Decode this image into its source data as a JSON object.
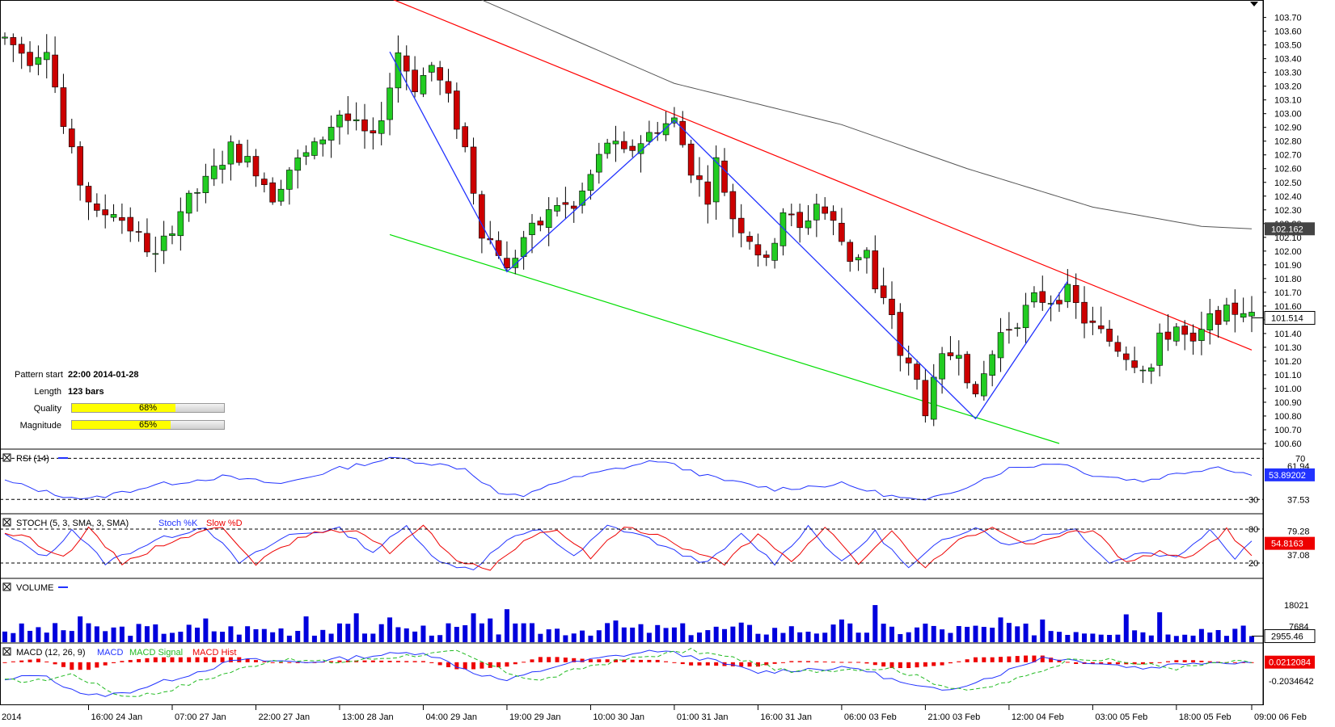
{
  "chart_data": {
    "type": "candlestick",
    "symbol": "USD/JPY",
    "timeframe": "1H",
    "price_axis": {
      "min": 100.6,
      "max": 103.78,
      "ticks": [
        "103.70",
        "103.60",
        "103.50",
        "103.40",
        "103.30",
        "103.20",
        "103.10",
        "103.00",
        "102.90",
        "102.80",
        "102.70",
        "102.60",
        "102.50",
        "102.40",
        "102.30",
        "102.20",
        "102.10",
        "102.00",
        "101.90",
        "101.80",
        "101.70",
        "101.60",
        "101.50",
        "101.40",
        "101.30",
        "101.20",
        "101.10",
        "101.00",
        "100.90",
        "100.80",
        "100.70",
        "100.60"
      ],
      "ma_label": "102.162",
      "ma_value": 102.162,
      "last_label": "101.514",
      "last_value": 101.514
    },
    "time_axis": [
      "2014",
      "16:00 24 Jan",
      "07:00 27 Jan",
      "22:00 27 Jan",
      "13:00 28 Jan",
      "04:00 29 Jan",
      "19:00 29 Jan",
      "10:00 30 Jan",
      "01:00 31 Jan",
      "16:00 31 Jan",
      "06:00 03 Feb",
      "21:00 03 Feb",
      "12:00 04 Feb",
      "03:00 05 Feb",
      "18:00 05 Feb",
      "09:00 06 Feb"
    ],
    "bars": 150,
    "anchors": [
      [
        0,
        103.55
      ],
      [
        3,
        103.4
      ],
      [
        5,
        103.5
      ],
      [
        7,
        102.9
      ],
      [
        9,
        102.5
      ],
      [
        11,
        102.25
      ],
      [
        13,
        102.3
      ],
      [
        16,
        102.1
      ],
      [
        18,
        101.95
      ],
      [
        21,
        102.3
      ],
      [
        24,
        102.5
      ],
      [
        27,
        102.75
      ],
      [
        30,
        102.6
      ],
      [
        32,
        102.4
      ],
      [
        34,
        102.6
      ],
      [
        37,
        102.75
      ],
      [
        40,
        103.0
      ],
      [
        42,
        102.9
      ],
      [
        44,
        102.8
      ],
      [
        46,
        103.2
      ],
      [
        47,
        103.45
      ],
      [
        49,
        103.2
      ],
      [
        51,
        103.35
      ],
      [
        53,
        103.1
      ],
      [
        55,
        102.75
      ],
      [
        57,
        102.15
      ],
      [
        59,
        102.0
      ],
      [
        60,
        101.85
      ],
      [
        62,
        102.1
      ],
      [
        64,
        102.2
      ],
      [
        66,
        102.35
      ],
      [
        68,
        102.3
      ],
      [
        70,
        102.55
      ],
      [
        72,
        102.8
      ],
      [
        74,
        102.7
      ],
      [
        76,
        102.8
      ],
      [
        78,
        102.9
      ],
      [
        80,
        102.95
      ],
      [
        82,
        102.6
      ],
      [
        84,
        102.4
      ],
      [
        85,
        102.65
      ],
      [
        87,
        102.25
      ],
      [
        89,
        102.1
      ],
      [
        91,
        101.9
      ],
      [
        93,
        102.3
      ],
      [
        95,
        102.15
      ],
      [
        97,
        102.35
      ],
      [
        99,
        102.2
      ],
      [
        101,
        101.95
      ],
      [
        103,
        102.0
      ],
      [
        104,
        101.7
      ],
      [
        106,
        101.55
      ],
      [
        107,
        101.25
      ],
      [
        109,
        101.05
      ],
      [
        110,
        100.85
      ],
      [
        112,
        101.2
      ],
      [
        114,
        101.3
      ],
      [
        116,
        100.9
      ],
      [
        117,
        101.1
      ],
      [
        119,
        101.4
      ],
      [
        121,
        101.5
      ],
      [
        123,
        101.65
      ],
      [
        125,
        101.65
      ],
      [
        127,
        101.7
      ],
      [
        129,
        101.5
      ],
      [
        131,
        101.4
      ],
      [
        133,
        101.3
      ],
      [
        135,
        101.2
      ],
      [
        137,
        101.15
      ],
      [
        138,
        101.35
      ],
      [
        140,
        101.45
      ],
      [
        142,
        101.3
      ],
      [
        144,
        101.5
      ],
      [
        146,
        101.55
      ],
      [
        148,
        101.58
      ],
      [
        149,
        101.514
      ]
    ],
    "ma_curve": [
      [
        0,
        104.4
      ],
      [
        40,
        103.95
      ],
      [
        55,
        103.88
      ],
      [
        80,
        103.22
      ],
      [
        100,
        102.92
      ],
      [
        115,
        102.6
      ],
      [
        130,
        102.32
      ],
      [
        143,
        102.18
      ],
      [
        149,
        102.162
      ]
    ],
    "channel": {
      "upper": [
        [
          46,
          103.84
        ],
        [
          149,
          101.28
        ]
      ],
      "lower": [
        [
          46,
          102.12
        ],
        [
          126,
          100.6
        ]
      ]
    },
    "zigzag": [
      [
        46,
        103.45
      ],
      [
        60,
        101.85
      ],
      [
        80,
        102.95
      ],
      [
        116,
        100.78
      ],
      [
        127,
        101.78
      ]
    ],
    "pattern": {
      "start_label": "Pattern start",
      "start_value": "22:00 2014-01-28",
      "length_label": "Length",
      "length_value": "123 bars",
      "quality_label": "Quality",
      "quality_value": 68,
      "quality_text": "68%",
      "magnitude_label": "Magnitude",
      "magnitude_value": 65,
      "magnitude_text": "65%"
    },
    "rsi": {
      "title": "RSI (14)",
      "levels": [
        "70",
        "30"
      ],
      "tick_labels": [
        "61.94",
        "37.53"
      ],
      "current_label": "53.89202",
      "current": 53.89,
      "anchors": [
        [
          0,
          48
        ],
        [
          6,
          35
        ],
        [
          10,
          30
        ],
        [
          18,
          44
        ],
        [
          26,
          52
        ],
        [
          33,
          45
        ],
        [
          40,
          60
        ],
        [
          45,
          68
        ],
        [
          47,
          70
        ],
        [
          55,
          60
        ],
        [
          59,
          36
        ],
        [
          62,
          32
        ],
        [
          65,
          45
        ],
        [
          72,
          58
        ],
        [
          78,
          68
        ],
        [
          85,
          50
        ],
        [
          92,
          40
        ],
        [
          100,
          45
        ],
        [
          106,
          33
        ],
        [
          110,
          28
        ],
        [
          114,
          40
        ],
        [
          120,
          60
        ],
        [
          126,
          66
        ],
        [
          130,
          54
        ],
        [
          136,
          48
        ],
        [
          140,
          55
        ],
        [
          145,
          62
        ],
        [
          149,
          54
        ]
      ]
    },
    "stoch": {
      "title": "STOCH (5, 3, SMA, 3, SMA)",
      "k_label": "Stoch %K",
      "d_label": "Slow %D",
      "levels": [
        "80",
        "20"
      ],
      "tick_labels": [
        "79.28",
        "37.08"
      ],
      "current_label": "54.8163",
      "current_k": 61.9,
      "current_d": 54.8,
      "anchors": [
        [
          0,
          70
        ],
        [
          5,
          30
        ],
        [
          8,
          80
        ],
        [
          12,
          20
        ],
        [
          18,
          60
        ],
        [
          24,
          85
        ],
        [
          28,
          20
        ],
        [
          34,
          70
        ],
        [
          40,
          80
        ],
        [
          44,
          40
        ],
        [
          48,
          85
        ],
        [
          52,
          20
        ],
        [
          56,
          10
        ],
        [
          60,
          60
        ],
        [
          64,
          80
        ],
        [
          68,
          30
        ],
        [
          72,
          85
        ],
        [
          76,
          70
        ],
        [
          80,
          40
        ],
        [
          84,
          20
        ],
        [
          88,
          70
        ],
        [
          92,
          20
        ],
        [
          96,
          85
        ],
        [
          100,
          20
        ],
        [
          104,
          75
        ],
        [
          108,
          10
        ],
        [
          112,
          60
        ],
        [
          116,
          85
        ],
        [
          120,
          50
        ],
        [
          124,
          70
        ],
        [
          128,
          80
        ],
        [
          132,
          20
        ],
        [
          136,
          40
        ],
        [
          140,
          30
        ],
        [
          144,
          80
        ],
        [
          147,
          30
        ],
        [
          149,
          60
        ]
      ]
    },
    "volume": {
      "title": "VOLUME",
      "tick_labels": [
        "18021",
        "7684"
      ],
      "current_label": "2955.46",
      "current": 2955.46,
      "max": 29000,
      "spikes": [
        [
          9,
          12500
        ],
        [
          24,
          11500
        ],
        [
          36,
          12500
        ],
        [
          42,
          14000
        ],
        [
          46,
          12000
        ],
        [
          56,
          14000
        ],
        [
          58,
          11500
        ],
        [
          60,
          16000
        ],
        [
          73,
          10500
        ],
        [
          88,
          9500
        ],
        [
          100,
          11000
        ],
        [
          104,
          18000
        ],
        [
          110,
          9000
        ],
        [
          119,
          12000
        ],
        [
          124,
          11000
        ],
        [
          134,
          13500
        ],
        [
          138,
          14500
        ]
      ]
    },
    "macd": {
      "title": "MACD (12, 26, 9)",
      "macd_label": "MACD",
      "signal_label": "MACD Signal",
      "hist_label": "MACD Hist",
      "tick_labels": [
        "0.0212084",
        "-0.2034642"
      ],
      "current_label": "0.0212084",
      "current": 0.0212084,
      "anchors": [
        [
          0,
          -0.2
        ],
        [
          4,
          -0.12
        ],
        [
          10,
          -0.38
        ],
        [
          14,
          -0.35
        ],
        [
          20,
          -0.18
        ],
        [
          28,
          0.05
        ],
        [
          36,
          0.02
        ],
        [
          44,
          0.1
        ],
        [
          50,
          0.14
        ],
        [
          56,
          -0.1
        ],
        [
          60,
          -0.2
        ],
        [
          66,
          -0.02
        ],
        [
          72,
          0.08
        ],
        [
          78,
          0.16
        ],
        [
          84,
          0.05
        ],
        [
          90,
          -0.1
        ],
        [
          96,
          -0.06
        ],
        [
          102,
          -0.05
        ],
        [
          108,
          -0.25
        ],
        [
          112,
          -0.32
        ],
        [
          118,
          -0.15
        ],
        [
          124,
          0.08
        ],
        [
          130,
          0.02
        ],
        [
          136,
          -0.05
        ],
        [
          142,
          0.02
        ],
        [
          149,
          0.0212
        ]
      ]
    }
  }
}
